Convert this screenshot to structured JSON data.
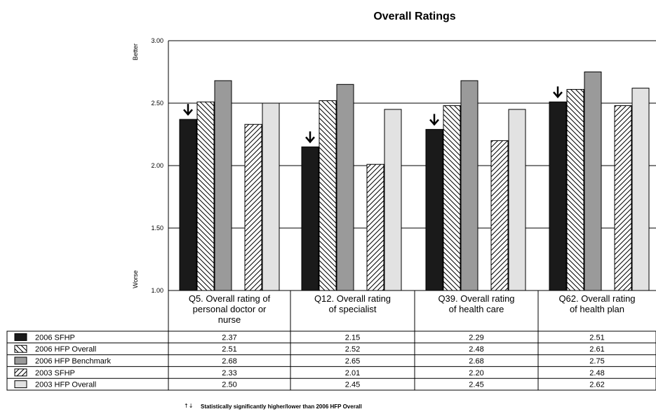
{
  "chart_data": {
    "type": "bar",
    "title": "Overall Ratings",
    "y_axis": {
      "min": 1.0,
      "max": 3.0,
      "ticks": [
        "3.00",
        "2.50",
        "2.00",
        "1.50",
        "1.00"
      ],
      "label_top": "Better",
      "label_bottom": "Worse",
      "grid": true
    },
    "categories": [
      [
        "Q5. Overall rating of",
        "personal doctor or",
        "nurse"
      ],
      [
        "Q12. Overall rating",
        "of specialist"
      ],
      [
        "Q39. Overall rating",
        "of health care"
      ],
      [
        "Q62. Overall rating",
        "of health plan"
      ]
    ],
    "series": [
      {
        "name": "2006 SFHP",
        "fill": "dark",
        "values": [
          2.37,
          2.15,
          2.29,
          2.51
        ],
        "labels": [
          "2.37",
          "2.15",
          "2.29",
          "2.51"
        ]
      },
      {
        "name": "2006 HFP Overall",
        "fill": "hatch-back",
        "values": [
          2.51,
          2.52,
          2.48,
          2.61
        ],
        "labels": [
          "2.51",
          "2.52",
          "2.48",
          "2.61"
        ]
      },
      {
        "name": "2006 HFP Benchmark",
        "fill": "medium",
        "values": [
          2.68,
          2.65,
          2.68,
          2.75
        ],
        "labels": [
          "2.68",
          "2.65",
          "2.68",
          "2.75"
        ]
      },
      {
        "name": "2003 SFHP",
        "fill": "hatch-fwd",
        "values": [
          2.33,
          2.01,
          2.2,
          2.48
        ],
        "labels": [
          "2.33",
          "2.01",
          "2.20",
          "2.48"
        ]
      },
      {
        "name": "2003 HFP Overall",
        "fill": "light",
        "values": [
          2.5,
          2.45,
          2.45,
          2.62
        ],
        "labels": [
          "2.50",
          "2.45",
          "2.45",
          "2.62"
        ]
      }
    ],
    "significance_markers": [
      {
        "series": "2006 SFHP",
        "category_index": 0,
        "direction": "lower"
      },
      {
        "series": "2006 SFHP",
        "category_index": 1,
        "direction": "lower"
      },
      {
        "series": "2006 SFHP",
        "category_index": 2,
        "direction": "lower"
      },
      {
        "series": "2006 SFHP",
        "category_index": 3,
        "direction": "lower"
      }
    ],
    "footnote": {
      "symbol": "↑↓",
      "text": "Statistically significantly higher/lower than 2006 HFP Overall"
    },
    "colors": {
      "dark": "#1a1a1a",
      "medium": "#9a9a9a",
      "light": "#e2e2e2",
      "hatch": "#000000"
    }
  }
}
